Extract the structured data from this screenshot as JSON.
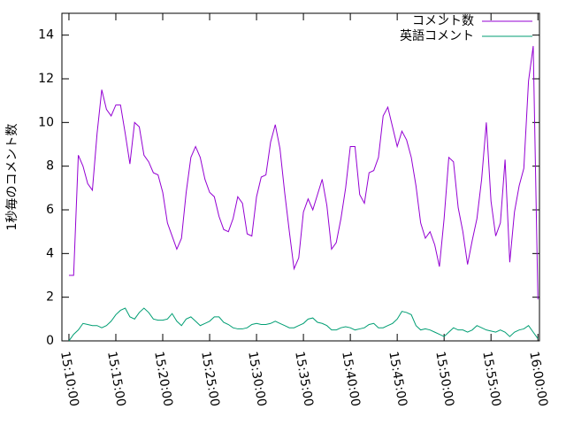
{
  "chart_data": {
    "type": "line",
    "ylabel": "1秒毎のコメント数",
    "x": [
      "15:10:00",
      "15:10:30",
      "15:11:00",
      "15:11:30",
      "15:12:00",
      "15:12:30",
      "15:13:00",
      "15:13:30",
      "15:14:00",
      "15:14:30",
      "15:15:00",
      "15:15:30",
      "15:16:00",
      "15:16:30",
      "15:17:00",
      "15:17:30",
      "15:18:00",
      "15:18:30",
      "15:19:00",
      "15:19:30",
      "15:20:00",
      "15:20:30",
      "15:21:00",
      "15:21:30",
      "15:22:00",
      "15:22:30",
      "15:23:00",
      "15:23:30",
      "15:24:00",
      "15:24:30",
      "15:25:00",
      "15:25:30",
      "15:26:00",
      "15:26:30",
      "15:27:00",
      "15:27:30",
      "15:28:00",
      "15:28:30",
      "15:29:00",
      "15:29:30",
      "15:30:00",
      "15:30:30",
      "15:31:00",
      "15:31:30",
      "15:32:00",
      "15:32:30",
      "15:33:00",
      "15:33:30",
      "15:34:00",
      "15:34:30",
      "15:35:00",
      "15:35:30",
      "15:36:00",
      "15:36:30",
      "15:37:00",
      "15:37:30",
      "15:38:00",
      "15:38:30",
      "15:39:00",
      "15:39:30",
      "15:40:00",
      "15:40:30",
      "15:41:00",
      "15:41:30",
      "15:42:00",
      "15:42:30",
      "15:43:00",
      "15:43:30",
      "15:44:00",
      "15:44:30",
      "15:45:00",
      "15:45:30",
      "15:46:00",
      "15:46:30",
      "15:47:00",
      "15:47:30",
      "15:48:00",
      "15:48:30",
      "15:49:00",
      "15:49:30",
      "15:50:00",
      "15:50:30",
      "15:51:00",
      "15:51:30",
      "15:52:00",
      "15:52:30",
      "15:53:00",
      "15:53:30",
      "15:54:00",
      "15:54:30",
      "15:55:00",
      "15:55:30",
      "15:56:00",
      "15:56:30",
      "15:57:00",
      "15:57:30",
      "15:58:00",
      "15:58:30",
      "15:59:00",
      "15:59:30",
      "16:00:00"
    ],
    "series": [
      {
        "name": "コメント数",
        "color": "#9400d3",
        "values": [
          3.0,
          3.0,
          8.5,
          8.0,
          7.2,
          6.9,
          9.5,
          11.5,
          10.6,
          10.3,
          10.8,
          10.8,
          9.5,
          8.1,
          10.0,
          9.8,
          8.5,
          8.2,
          7.7,
          7.6,
          6.8,
          5.4,
          4.8,
          4.2,
          4.7,
          6.8,
          8.4,
          8.9,
          8.4,
          7.4,
          6.8,
          6.6,
          5.7,
          5.1,
          5.0,
          5.6,
          6.6,
          6.3,
          4.9,
          4.8,
          6.6,
          7.5,
          7.6,
          9.1,
          9.9,
          8.8,
          6.8,
          5.0,
          3.3,
          3.8,
          5.9,
          6.5,
          6.0,
          6.7,
          7.4,
          6.2,
          4.2,
          4.5,
          5.6,
          7.0,
          8.9,
          8.9,
          6.7,
          6.3,
          7.7,
          7.8,
          8.4,
          10.3,
          10.7,
          9.8,
          8.9,
          9.6,
          9.2,
          8.4,
          7.1,
          5.4,
          4.7,
          5.0,
          4.4,
          3.4,
          5.6,
          8.4,
          8.2,
          6.1,
          5.0,
          3.5,
          4.6,
          5.6,
          7.4,
          10.0,
          6.4,
          4.8,
          5.4,
          8.3,
          3.6,
          5.9,
          7.1,
          7.9,
          11.9,
          13.5,
          1.9
        ]
      },
      {
        "name": "英語コメント",
        "color": "#009e73",
        "values": [
          0.0,
          0.3,
          0.5,
          0.8,
          0.75,
          0.7,
          0.7,
          0.6,
          0.7,
          0.9,
          1.2,
          1.4,
          1.5,
          1.1,
          1.0,
          1.3,
          1.5,
          1.3,
          1.0,
          0.95,
          0.95,
          1.0,
          1.25,
          0.9,
          0.7,
          1.0,
          1.1,
          0.9,
          0.7,
          0.8,
          0.9,
          1.1,
          1.1,
          0.85,
          0.75,
          0.6,
          0.55,
          0.55,
          0.6,
          0.75,
          0.8,
          0.75,
          0.75,
          0.8,
          0.9,
          0.8,
          0.7,
          0.6,
          0.6,
          0.7,
          0.8,
          1.0,
          1.05,
          0.85,
          0.8,
          0.7,
          0.5,
          0.5,
          0.6,
          0.65,
          0.6,
          0.5,
          0.55,
          0.6,
          0.75,
          0.8,
          0.6,
          0.6,
          0.7,
          0.8,
          1.0,
          1.35,
          1.3,
          1.2,
          0.7,
          0.5,
          0.55,
          0.5,
          0.4,
          0.3,
          0.2,
          0.4,
          0.6,
          0.5,
          0.5,
          0.4,
          0.5,
          0.7,
          0.6,
          0.5,
          0.45,
          0.4,
          0.5,
          0.4,
          0.2,
          0.4,
          0.5,
          0.55,
          0.7,
          0.4,
          0.1
        ]
      }
    ],
    "xlim": [
      "15:09:15",
      "16:00:10"
    ],
    "xticks": [
      "15:10:00",
      "15:15:00",
      "15:20:00",
      "15:25:00",
      "15:30:00",
      "15:35:00",
      "15:40:00",
      "15:45:00",
      "15:50:00",
      "15:55:00",
      "16:00:00"
    ],
    "ylim": [
      0,
      15
    ],
    "yticks": [
      0,
      2,
      4,
      6,
      8,
      10,
      12,
      14
    ],
    "legend": "top-right"
  }
}
